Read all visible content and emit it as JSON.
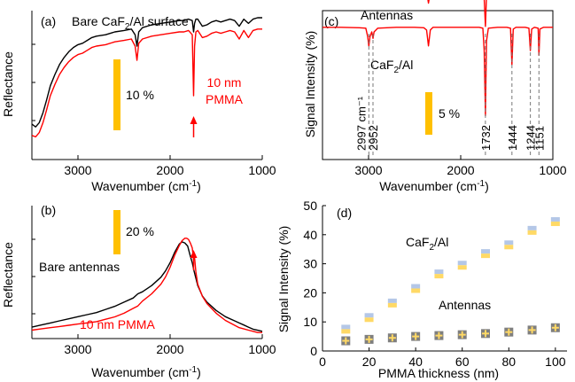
{
  "colors": {
    "black": "#000000",
    "red": "#ff0000",
    "scalebar": "#ffc000",
    "gray": "#777777",
    "marker_blue": "#b4c7e7",
    "marker_yellow": "#ffd966",
    "marker_gray": "#7f7f7f"
  },
  "chart_data": [
    {
      "panel": "(a)",
      "type": "line",
      "xlabel_main": "Wavenumber (cm",
      "xlabel_sup": "-1",
      "xlabel_end": ")",
      "ylabel": "Reflectance",
      "xlim": [
        3500,
        1000
      ],
      "xticks": [
        "3000",
        "2000",
        "1000"
      ],
      "xtick_values": [
        3000,
        2000,
        1000
      ],
      "scalebar_label": "10 %",
      "annotations": {
        "black_label_main": "Bare CaF",
        "black_label_sub": "2",
        "black_label_end": "/Al surface",
        "red_label_line1": "10 nm",
        "red_label_line2": "PMMA"
      },
      "series": [
        {
          "name": "Bare CaF2/Al surface",
          "x": [
            3500,
            3460,
            3420,
            3380,
            3340,
            3300,
            3250,
            3200,
            3150,
            3100,
            3050,
            3000,
            2950,
            2900,
            2850,
            2800,
            2700,
            2600,
            2500,
            2420,
            2380,
            2360,
            2340,
            2300,
            2200,
            2100,
            2000,
            1900,
            1850,
            1800,
            1760,
            1745,
            1735,
            1720,
            1700,
            1650,
            1600,
            1550,
            1500,
            1450,
            1400,
            1350,
            1300,
            1250,
            1200,
            1150,
            1100,
            1050,
            1000
          ],
          "y": [
            0.25,
            0.23,
            0.26,
            0.33,
            0.42,
            0.52,
            0.6,
            0.67,
            0.72,
            0.76,
            0.79,
            0.81,
            0.82,
            0.84,
            0.86,
            0.87,
            0.88,
            0.9,
            0.91,
            0.92,
            0.88,
            0.8,
            0.9,
            0.93,
            0.95,
            0.96,
            0.97,
            0.98,
            0.98,
            0.99,
            0.98,
            0.9,
            0.96,
            0.99,
            0.99,
            0.94,
            0.95,
            0.97,
            0.98,
            0.97,
            0.98,
            0.99,
            0.98,
            0.94,
            0.99,
            0.96,
            0.99,
            1.0,
            1.0
          ]
        },
        {
          "name": "10 nm PMMA",
          "x": [
            3500,
            3460,
            3420,
            3380,
            3340,
            3300,
            3250,
            3200,
            3150,
            3100,
            3050,
            3000,
            2950,
            2900,
            2850,
            2800,
            2700,
            2600,
            2500,
            2420,
            2380,
            2360,
            2340,
            2300,
            2200,
            2100,
            2000,
            1900,
            1850,
            1800,
            1760,
            1745,
            1735,
            1720,
            1700,
            1650,
            1600,
            1550,
            1500,
            1450,
            1400,
            1350,
            1300,
            1250,
            1200,
            1150,
            1100,
            1050,
            1000
          ],
          "y": [
            0.17,
            0.16,
            0.19,
            0.26,
            0.35,
            0.45,
            0.53,
            0.6,
            0.65,
            0.69,
            0.72,
            0.74,
            0.75,
            0.77,
            0.79,
            0.8,
            0.81,
            0.83,
            0.84,
            0.85,
            0.8,
            0.7,
            0.82,
            0.85,
            0.87,
            0.88,
            0.89,
            0.9,
            0.9,
            0.91,
            0.88,
            0.45,
            0.8,
            0.9,
            0.91,
            0.86,
            0.87,
            0.89,
            0.9,
            0.89,
            0.9,
            0.91,
            0.9,
            0.85,
            0.91,
            0.86,
            0.91,
            0.92,
            0.92
          ]
        }
      ]
    },
    {
      "panel": "(b)",
      "type": "line",
      "xlabel_main": "Wavenumber (cm",
      "xlabel_sup": "-1",
      "xlabel_end": ")",
      "ylabel": "Reflectance",
      "xlim": [
        3500,
        1000
      ],
      "xticks": [
        "3000",
        "2000",
        "1000"
      ],
      "xtick_values": [
        3000,
        2000,
        1000
      ],
      "scalebar_label": "20 %",
      "annotations": {
        "black_label": "Bare antennas",
        "red_label": "10 nm PMMA"
      },
      "series": [
        {
          "name": "Bare antennas",
          "x": [
            3500,
            3400,
            3300,
            3200,
            3100,
            3000,
            2900,
            2800,
            2700,
            2600,
            2500,
            2400,
            2350,
            2300,
            2200,
            2100,
            2050,
            2000,
            1950,
            1900,
            1870,
            1840,
            1810,
            1780,
            1760,
            1740,
            1700,
            1650,
            1600,
            1500,
            1400,
            1300,
            1250,
            1200,
            1150,
            1100,
            1050,
            1000
          ],
          "y": [
            0.18,
            0.2,
            0.22,
            0.24,
            0.26,
            0.28,
            0.3,
            0.32,
            0.35,
            0.38,
            0.42,
            0.46,
            0.5,
            0.52,
            0.58,
            0.66,
            0.72,
            0.8,
            0.9,
            0.98,
            1.0,
            0.99,
            0.96,
            0.86,
            0.8,
            0.72,
            0.58,
            0.48,
            0.42,
            0.34,
            0.28,
            0.24,
            0.22,
            0.2,
            0.18,
            0.16,
            0.15,
            0.14
          ]
        },
        {
          "name": "10 nm PMMA",
          "x": [
            3500,
            3400,
            3300,
            3200,
            3100,
            3000,
            2900,
            2800,
            2700,
            2600,
            2500,
            2400,
            2350,
            2300,
            2200,
            2100,
            2050,
            2000,
            1950,
            1900,
            1870,
            1840,
            1820,
            1800,
            1780,
            1760,
            1745,
            1735,
            1720,
            1700,
            1650,
            1600,
            1500,
            1400,
            1300,
            1250,
            1200,
            1150,
            1100,
            1050,
            1000
          ],
          "y": [
            0.02,
            0.03,
            0.04,
            0.05,
            0.06,
            0.07,
            0.08,
            0.09,
            0.11,
            0.13,
            0.16,
            0.2,
            0.22,
            0.26,
            0.32,
            0.4,
            0.46,
            0.54,
            0.64,
            0.72,
            0.76,
            0.78,
            0.78,
            0.77,
            0.74,
            0.7,
            0.6,
            0.62,
            0.5,
            0.4,
            0.3,
            0.24,
            0.16,
            0.1,
            0.06,
            0.04,
            0.03,
            0.02,
            0.01,
            0.0,
            0.0
          ]
        }
      ]
    },
    {
      "panel": "(c)",
      "type": "line",
      "xlabel_main": "Wavenumber (cm",
      "xlabel_sup": "-1",
      "xlabel_end": ")",
      "ylabel": "Signal Intensity (%)",
      "xlim": [
        3500,
        1000
      ],
      "xticks": [
        "3000",
        "2000",
        "1000"
      ],
      "xtick_values": [
        3000,
        2000,
        1000
      ],
      "scalebar_label": "5 %",
      "annotations": {
        "top_label": "Antennas",
        "bottom_label_main": "CaF",
        "bottom_label_sub": "2",
        "bottom_label_end": "/Al"
      },
      "peaks": [
        {
          "x": 2997,
          "label": "2997 cm⁻¹"
        },
        {
          "x": 2952,
          "label": "2952"
        },
        {
          "x": 1732,
          "label": "1732"
        },
        {
          "x": 1444,
          "label": "1444"
        },
        {
          "x": 1244,
          "label": "1244"
        },
        {
          "x": 1151,
          "label": "1151"
        }
      ],
      "series": [
        {
          "name": "Antennas",
          "x": [
            3500,
            3300,
            3100,
            3000,
            2990,
            2970,
            2950,
            2900,
            2700,
            2500,
            2400,
            2370,
            2350,
            2330,
            2300,
            2100,
            1900,
            1800,
            1760,
            1745,
            1732,
            1720,
            1700,
            1600,
            1500,
            1460,
            1444,
            1430,
            1400,
            1300,
            1260,
            1244,
            1230,
            1200,
            1160,
            1151,
            1140,
            1100,
            1000
          ],
          "y": [
            0.5,
            0.5,
            0.49,
            0.48,
            0.52,
            0.5,
            0.53,
            0.5,
            0.5,
            0.5,
            0.49,
            0.45,
            0.2,
            0.44,
            0.5,
            0.5,
            0.5,
            0.5,
            0.48,
            0.3,
            -0.3,
            0.35,
            0.48,
            0.5,
            0.5,
            0.48,
            0.3,
            0.48,
            0.5,
            0.5,
            0.48,
            0.33,
            0.48,
            0.5,
            0.48,
            0.36,
            0.48,
            0.5,
            0.5
          ]
        },
        {
          "name": "CaF2/Al",
          "x": [
            3500,
            3300,
            3100,
            3030,
            3010,
            2997,
            2985,
            2965,
            2952,
            2940,
            2900,
            2700,
            2500,
            2400,
            2370,
            2350,
            2330,
            2300,
            2100,
            1900,
            1800,
            1760,
            1745,
            1732,
            1720,
            1700,
            1600,
            1500,
            1460,
            1444,
            1430,
            1400,
            1300,
            1260,
            1244,
            1230,
            1200,
            1160,
            1151,
            1140,
            1100,
            1000
          ],
          "y": [
            0.5,
            0.5,
            0.49,
            0.48,
            0.3,
            0.1,
            0.3,
            0.4,
            0.26,
            0.4,
            0.48,
            0.5,
            0.5,
            0.49,
            0.44,
            0.1,
            0.44,
            0.5,
            0.5,
            0.5,
            0.5,
            0.48,
            0.0,
            -1.4,
            0.2,
            0.48,
            0.5,
            0.5,
            0.48,
            -0.3,
            0.46,
            0.5,
            0.5,
            0.48,
            0.0,
            0.46,
            0.5,
            0.48,
            -0.1,
            0.46,
            0.5,
            0.5
          ]
        }
      ]
    },
    {
      "panel": "(d)",
      "type": "scatter",
      "xlabel": "PMMA thickness (nm)",
      "ylabel": "Signal Intensity (%)",
      "xlim": [
        0,
        105
      ],
      "ylim": [
        0,
        50
      ],
      "xticks": [
        0,
        20,
        40,
        60,
        80,
        100
      ],
      "yticks": [
        0,
        10,
        20,
        30,
        40,
        50
      ],
      "annotations": {
        "upper_label_main": "CaF",
        "upper_label_sub": "2",
        "upper_label_end": "/Al",
        "lower_label": "Antennas"
      },
      "series": [
        {
          "name": "CaF2/Al",
          "x": [
            10,
            20,
            30,
            40,
            50,
            60,
            70,
            80,
            90,
            100
          ],
          "y": [
            7.5,
            11.5,
            16.5,
            21.5,
            26.5,
            29.5,
            33.5,
            36.5,
            41.5,
            44.5
          ]
        },
        {
          "name": "Antennas",
          "x": [
            10,
            20,
            30,
            40,
            50,
            60,
            70,
            80,
            90,
            100
          ],
          "y": [
            3.5,
            4.0,
            4.5,
            5.0,
            5.3,
            5.6,
            6.0,
            6.5,
            7.2,
            8.0
          ]
        }
      ]
    }
  ]
}
